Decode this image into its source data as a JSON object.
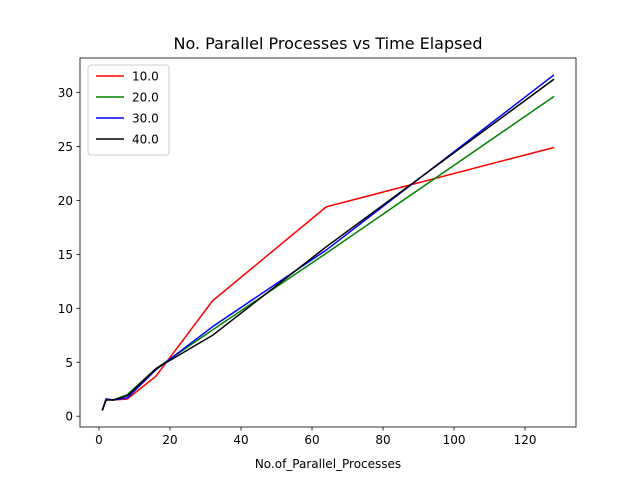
{
  "chart_data": {
    "type": "line",
    "title": "No. Parallel Processes vs Time Elapsed",
    "xlabel": "No.of_Parallel_Processes",
    "ylabel": "",
    "xlim": [
      -5.35,
      134.35
    ],
    "ylim": [
      -1.0,
      33.2
    ],
    "xticks": [
      0,
      20,
      40,
      60,
      80,
      100,
      120
    ],
    "yticks": [
      0,
      5,
      10,
      15,
      20,
      25,
      30
    ],
    "grid": false,
    "legend_position": "upper-left",
    "series": [
      {
        "name": "10.0",
        "color": "#ff0000",
        "x": [
          1,
          2,
          4,
          8,
          16,
          32,
          64,
          128
        ],
        "y": [
          0.6,
          1.6,
          1.5,
          1.6,
          3.7,
          10.7,
          19.4,
          24.9
        ]
      },
      {
        "name": "20.0",
        "color": "#008000",
        "x": [
          1,
          2,
          4,
          8,
          16,
          32,
          64,
          128
        ],
        "y": [
          0.6,
          1.6,
          1.5,
          2.0,
          4.4,
          8.0,
          15.1,
          29.6
        ]
      },
      {
        "name": "30.0",
        "color": "#0000ff",
        "x": [
          1,
          2,
          4,
          8,
          16,
          32,
          64,
          128
        ],
        "y": [
          0.6,
          1.6,
          1.5,
          1.7,
          4.3,
          8.3,
          15.4,
          31.6
        ]
      },
      {
        "name": "40.0",
        "color": "#000000",
        "x": [
          1,
          2,
          4,
          8,
          16,
          32,
          64,
          128
        ],
        "y": [
          0.6,
          1.5,
          1.5,
          1.9,
          4.4,
          7.5,
          15.7,
          31.2
        ]
      }
    ]
  }
}
